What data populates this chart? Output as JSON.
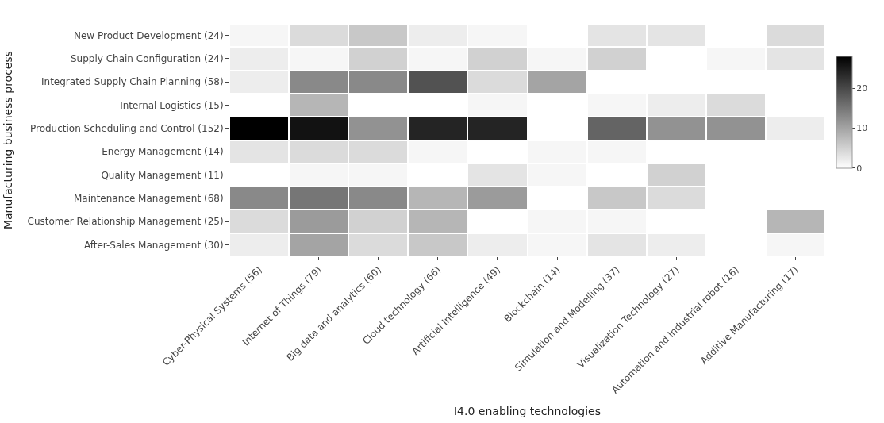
{
  "chart_data": {
    "type": "heatmap",
    "xlabel": "I4.0 enabling technologies",
    "ylabel": "Manufacturing business process",
    "categories": [
      "Cyber-Physical Systems (56)",
      "Internet of Things (79)",
      "Big data and analytics (60)",
      "Cloud technology (66)",
      "Artificial Intelligence (49)",
      "Blockchain (14)",
      "Simulation and Modelling (37)",
      "Visualization Technology (27)",
      "Automation and Industrial robot (16)",
      "Additive Manufacturing (17)"
    ],
    "y_categories": [
      "New Product Development (24)",
      "Supply Chain Configuration (24)",
      "Integrated Supply Chain Planning (58)",
      "Internal Logistics (15)",
      "Production Scheduling and Control (152)",
      "Energy Management (14)",
      "Quality Management (11)",
      "Maintenance Management (68)",
      "Customer Relationship Management (25)",
      "After-Sales Management (30)"
    ],
    "cells": [
      [
        1,
        4,
        6,
        2,
        1,
        0,
        3,
        3,
        0,
        4
      ],
      [
        2,
        1,
        5,
        1,
        5,
        1,
        5,
        0,
        1,
        3
      ],
      [
        2,
        13,
        13,
        19,
        4,
        10,
        0,
        0,
        0,
        0
      ],
      [
        0,
        8,
        0,
        0,
        1,
        0,
        1,
        2,
        4,
        0
      ],
      [
        28,
        26,
        12,
        24,
        24,
        0,
        17,
        12,
        12,
        2
      ],
      [
        3,
        4,
        4,
        1,
        0,
        1,
        1,
        0,
        0,
        0
      ],
      [
        0,
        1,
        1,
        0,
        3,
        1,
        0,
        5,
        0,
        0
      ],
      [
        13,
        15,
        13,
        8,
        11,
        0,
        6,
        4,
        0,
        0
      ],
      [
        4,
        11,
        5,
        8,
        0,
        1,
        1,
        0,
        0,
        8
      ],
      [
        2,
        10,
        4,
        6,
        2,
        1,
        3,
        2,
        0,
        1
      ]
    ],
    "clim": [
      0,
      28
    ],
    "cticks": [
      0,
      10,
      20
    ]
  }
}
